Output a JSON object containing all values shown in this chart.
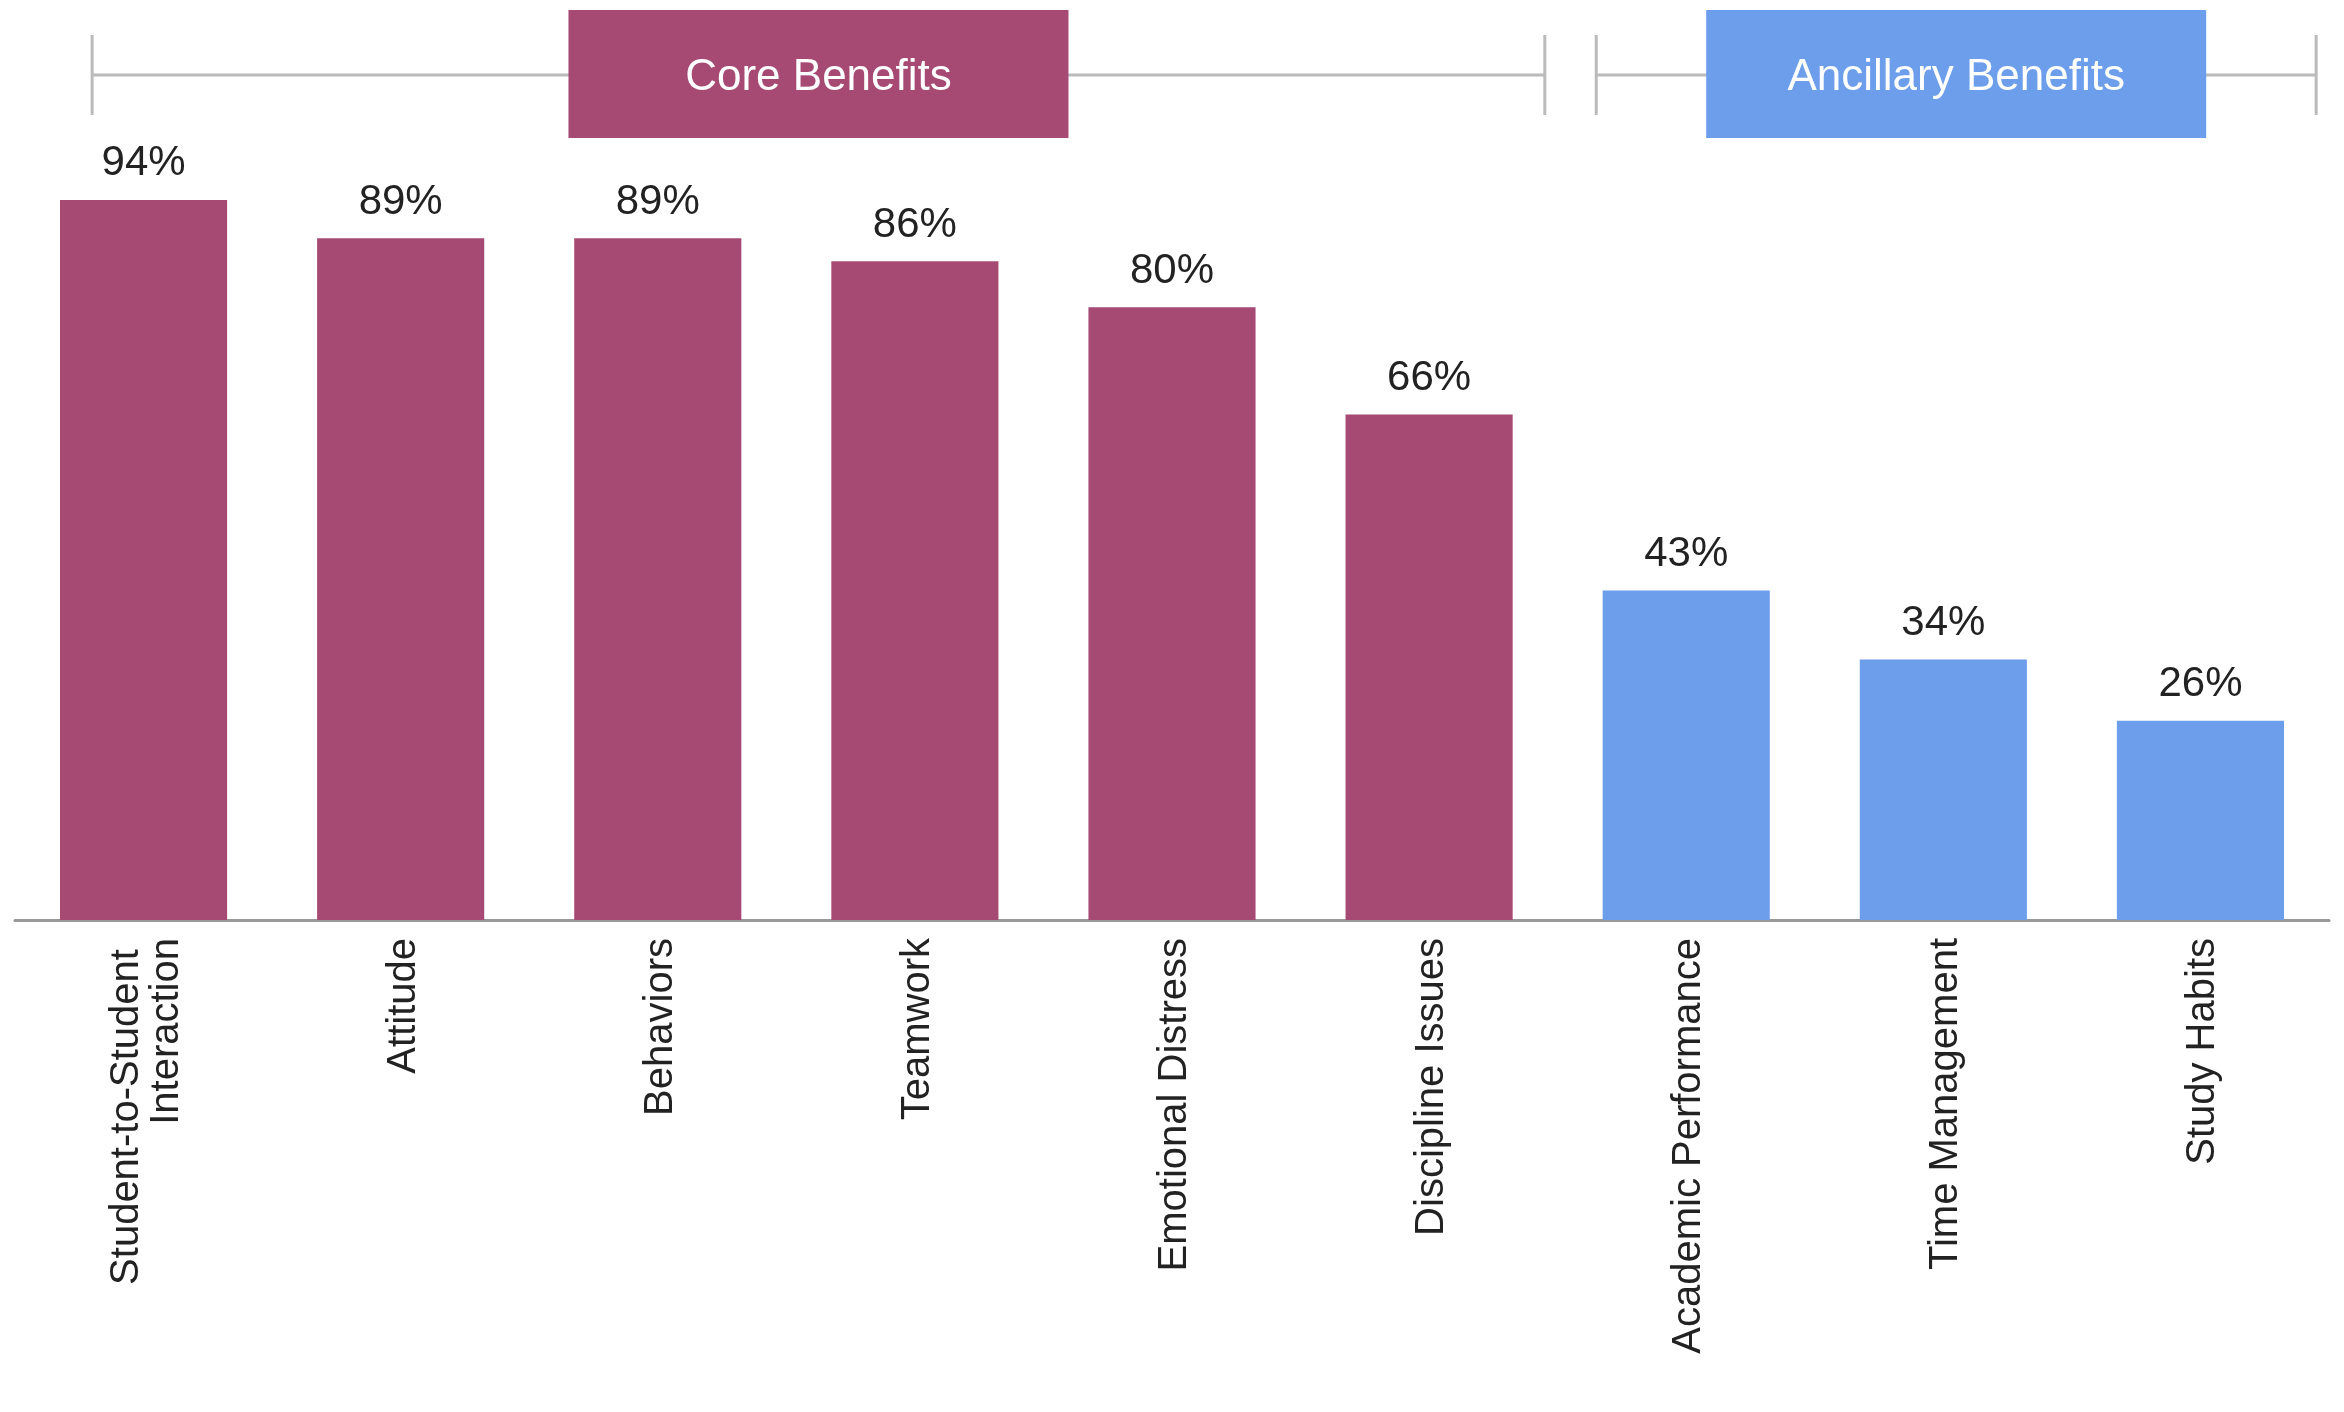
{
  "chart_data": {
    "type": "bar",
    "categories": [
      "Student-to-Student Interaction",
      "Attitude",
      "Behaviors",
      "Teamwork",
      "Emotional Distress",
      "Discipline Issues",
      "Academic Performance",
      "Time Management",
      "Study Habits"
    ],
    "series": [
      {
        "name": "Core Benefits",
        "color": "#a64a74",
        "values": [
          94,
          89,
          89,
          86,
          80,
          66,
          null,
          null,
          null
        ],
        "value_labels": [
          "94%",
          "89%",
          "89%",
          "86%",
          "80%",
          "66%",
          null,
          null,
          null
        ]
      },
      {
        "name": "Ancillary Benefits",
        "color": "#6d9eeb",
        "values": [
          null,
          null,
          null,
          null,
          null,
          null,
          43,
          34,
          26
        ],
        "value_labels": [
          null,
          null,
          null,
          null,
          null,
          null,
          "43%",
          "34%",
          "26%"
        ]
      }
    ],
    "grid": false,
    "legend": false
  }
}
